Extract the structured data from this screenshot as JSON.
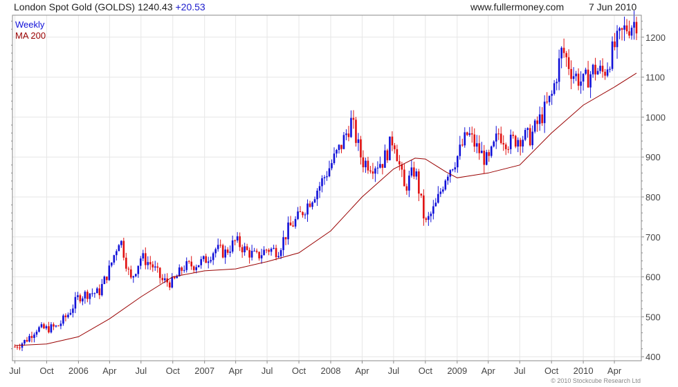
{
  "header": {
    "title": "London Spot Gold (GOLDS) 1240.43",
    "change": "+20.53",
    "site": "www.fullermoney.com",
    "date": "7 Jun 2010"
  },
  "legend": {
    "weekly": "Weekly",
    "ma": "MA 200"
  },
  "copyright": "© 2010 Stockcube Research Ltd",
  "colors": {
    "up": "#1010d8",
    "down": "#e01010",
    "ma": "#990000",
    "grid": "#e6e6e6",
    "frame": "#8a8a8a"
  },
  "chart_data": {
    "type": "candlestick",
    "ylim": [
      390,
      1255
    ],
    "yticks": [
      400,
      500,
      600,
      700,
      800,
      900,
      1000,
      1100,
      1200
    ],
    "xlim": [
      "2005-06-24",
      "2010-06-18"
    ],
    "xticks": [
      {
        "date": "2005-07-01",
        "label": "Jul"
      },
      {
        "date": "2005-10-01",
        "label": "Oct"
      },
      {
        "date": "2006-01-01",
        "label": "2006"
      },
      {
        "date": "2006-04-01",
        "label": "Apr"
      },
      {
        "date": "2006-07-01",
        "label": "Jul"
      },
      {
        "date": "2006-10-01",
        "label": "Oct"
      },
      {
        "date": "2007-01-01",
        "label": "2007"
      },
      {
        "date": "2007-04-01",
        "label": "Apr"
      },
      {
        "date": "2007-07-01",
        "label": "Jul"
      },
      {
        "date": "2007-10-01",
        "label": "Oct"
      },
      {
        "date": "2008-01-01",
        "label": "2008"
      },
      {
        "date": "2008-04-01",
        "label": "Apr"
      },
      {
        "date": "2008-07-01",
        "label": "Jul"
      },
      {
        "date": "2008-10-01",
        "label": "Oct"
      },
      {
        "date": "2009-01-01",
        "label": "2009"
      },
      {
        "date": "2009-04-01",
        "label": "Apr"
      },
      {
        "date": "2009-07-01",
        "label": "Jul"
      },
      {
        "date": "2009-10-01",
        "label": "Oct"
      },
      {
        "date": "2010-01-01",
        "label": "2010"
      },
      {
        "date": "2010-04-01",
        "label": "Apr"
      }
    ],
    "closes": [
      {
        "date": "2005-07-01",
        "close": 425
      },
      {
        "date": "2005-08-01",
        "close": 440
      },
      {
        "date": "2005-09-01",
        "close": 470
      },
      {
        "date": "2005-10-01",
        "close": 470
      },
      {
        "date": "2005-11-01",
        "close": 475
      },
      {
        "date": "2005-12-01",
        "close": 505
      },
      {
        "date": "2006-01-01",
        "close": 550
      },
      {
        "date": "2006-02-01",
        "close": 560
      },
      {
        "date": "2006-03-01",
        "close": 560
      },
      {
        "date": "2006-04-01",
        "close": 620
      },
      {
        "date": "2006-05-01",
        "close": 700
      },
      {
        "date": "2006-06-01",
        "close": 590
      },
      {
        "date": "2006-07-01",
        "close": 650
      },
      {
        "date": "2006-08-01",
        "close": 630
      },
      {
        "date": "2006-09-01",
        "close": 590
      },
      {
        "date": "2006-10-01",
        "close": 585
      },
      {
        "date": "2006-11-01",
        "close": 625
      },
      {
        "date": "2006-12-01",
        "close": 630
      },
      {
        "date": "2007-01-01",
        "close": 640
      },
      {
        "date": "2007-02-01",
        "close": 670
      },
      {
        "date": "2007-03-01",
        "close": 660
      },
      {
        "date": "2007-04-01",
        "close": 690
      },
      {
        "date": "2007-05-01",
        "close": 665
      },
      {
        "date": "2007-06-01",
        "close": 650
      },
      {
        "date": "2007-07-01",
        "close": 670
      },
      {
        "date": "2007-08-01",
        "close": 665
      },
      {
        "date": "2007-09-01",
        "close": 720
      },
      {
        "date": "2007-10-01",
        "close": 750
      },
      {
        "date": "2007-11-01",
        "close": 790
      },
      {
        "date": "2007-12-01",
        "close": 830
      },
      {
        "date": "2008-01-01",
        "close": 880
      },
      {
        "date": "2008-02-01",
        "close": 930
      },
      {
        "date": "2008-03-01",
        "close": 990
      },
      {
        "date": "2008-04-01",
        "close": 890
      },
      {
        "date": "2008-05-01",
        "close": 880
      },
      {
        "date": "2008-06-01",
        "close": 890
      },
      {
        "date": "2008-07-01",
        "close": 950
      },
      {
        "date": "2008-08-01",
        "close": 820
      },
      {
        "date": "2008-09-01",
        "close": 870
      },
      {
        "date": "2008-10-01",
        "close": 730
      },
      {
        "date": "2008-11-01",
        "close": 780
      },
      {
        "date": "2008-12-01",
        "close": 860
      },
      {
        "date": "2009-01-01",
        "close": 900
      },
      {
        "date": "2009-02-01",
        "close": 960
      },
      {
        "date": "2009-03-01",
        "close": 920
      },
      {
        "date": "2009-04-01",
        "close": 885
      },
      {
        "date": "2009-05-01",
        "close": 960
      },
      {
        "date": "2009-06-01",
        "close": 935
      },
      {
        "date": "2009-07-01",
        "close": 950
      },
      {
        "date": "2009-08-01",
        "close": 950
      },
      {
        "date": "2009-09-01",
        "close": 1000
      },
      {
        "date": "2009-10-01",
        "close": 1050
      },
      {
        "date": "2009-11-01",
        "close": 1170
      },
      {
        "date": "2009-12-01",
        "close": 1110
      },
      {
        "date": "2010-01-01",
        "close": 1085
      },
      {
        "date": "2010-02-01",
        "close": 1120
      },
      {
        "date": "2010-03-01",
        "close": 1110
      },
      {
        "date": "2010-04-01",
        "close": 1175
      },
      {
        "date": "2010-05-01",
        "close": 1220
      },
      {
        "date": "2010-06-01",
        "close": 1240
      }
    ],
    "ma200": [
      {
        "date": "2005-07-01",
        "value": 428
      },
      {
        "date": "2005-10-01",
        "value": 432
      },
      {
        "date": "2006-01-01",
        "value": 450
      },
      {
        "date": "2006-04-01",
        "value": 495
      },
      {
        "date": "2006-07-01",
        "value": 550
      },
      {
        "date": "2006-10-01",
        "value": 600
      },
      {
        "date": "2007-01-01",
        "value": 615
      },
      {
        "date": "2007-04-01",
        "value": 620
      },
      {
        "date": "2007-07-01",
        "value": 638
      },
      {
        "date": "2007-10-01",
        "value": 660
      },
      {
        "date": "2008-01-01",
        "value": 715
      },
      {
        "date": "2008-04-01",
        "value": 800
      },
      {
        "date": "2008-07-01",
        "value": 870
      },
      {
        "date": "2008-09-01",
        "value": 897
      },
      {
        "date": "2008-10-01",
        "value": 895
      },
      {
        "date": "2008-12-01",
        "value": 862
      },
      {
        "date": "2009-01-01",
        "value": 848
      },
      {
        "date": "2009-04-01",
        "value": 860
      },
      {
        "date": "2009-07-01",
        "value": 880
      },
      {
        "date": "2009-10-01",
        "value": 960
      },
      {
        "date": "2010-01-01",
        "value": 1030
      },
      {
        "date": "2010-04-01",
        "value": 1075
      },
      {
        "date": "2010-06-04",
        "value": 1110
      }
    ]
  }
}
